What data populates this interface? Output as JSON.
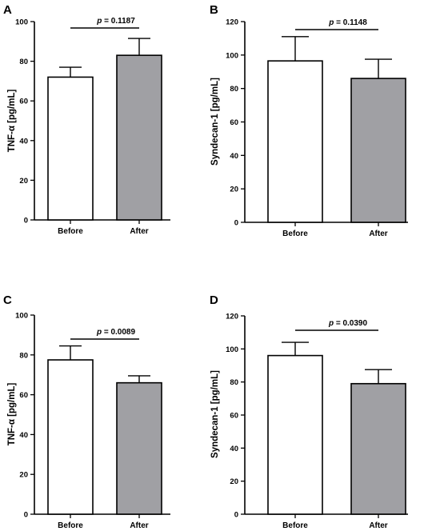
{
  "chart_data": [
    {
      "panel": "A",
      "type": "bar",
      "categories": [
        "Before",
        "After"
      ],
      "values": [
        72,
        83
      ],
      "errors": [
        5,
        8.5
      ],
      "ylabel": "TNF-α [pg/mL]",
      "ylim": [
        0,
        100
      ],
      "yticks": [
        0,
        20,
        40,
        60,
        80,
        100
      ],
      "p_value": "= 0.1187",
      "bar_colors": [
        "#ffffff",
        "#a0a0a4"
      ]
    },
    {
      "panel": "B",
      "type": "bar",
      "categories": [
        "Before",
        "After"
      ],
      "values": [
        96.5,
        86
      ],
      "errors": [
        14.5,
        11.5
      ],
      "ylabel": "Syndecan-1 [pg/mL]",
      "ylim": [
        0,
        120
      ],
      "yticks": [
        0,
        20,
        40,
        60,
        80,
        100,
        120
      ],
      "p_value": "= 0.1148",
      "bar_colors": [
        "#ffffff",
        "#a0a0a4"
      ]
    },
    {
      "panel": "C",
      "type": "bar",
      "categories": [
        "Before",
        "After"
      ],
      "values": [
        77.5,
        66
      ],
      "errors": [
        7,
        3.5
      ],
      "ylabel": "TNF-α [pg/mL]",
      "ylim": [
        0,
        100
      ],
      "yticks": [
        0,
        20,
        40,
        60,
        80,
        100
      ],
      "p_value": "= 0.0089",
      "bar_colors": [
        "#ffffff",
        "#a0a0a4"
      ]
    },
    {
      "panel": "D",
      "type": "bar",
      "categories": [
        "Before",
        "After"
      ],
      "values": [
        96,
        79
      ],
      "errors": [
        8,
        8.5
      ],
      "ylabel": "Syndecan-1 [pg/mL]",
      "ylim": [
        0,
        120
      ],
      "yticks": [
        0,
        20,
        40,
        60,
        80,
        100,
        120
      ],
      "p_value": "= 0.0390",
      "bar_colors": [
        "#ffffff",
        "#a0a0a4"
      ]
    }
  ],
  "p_prefix": "p"
}
